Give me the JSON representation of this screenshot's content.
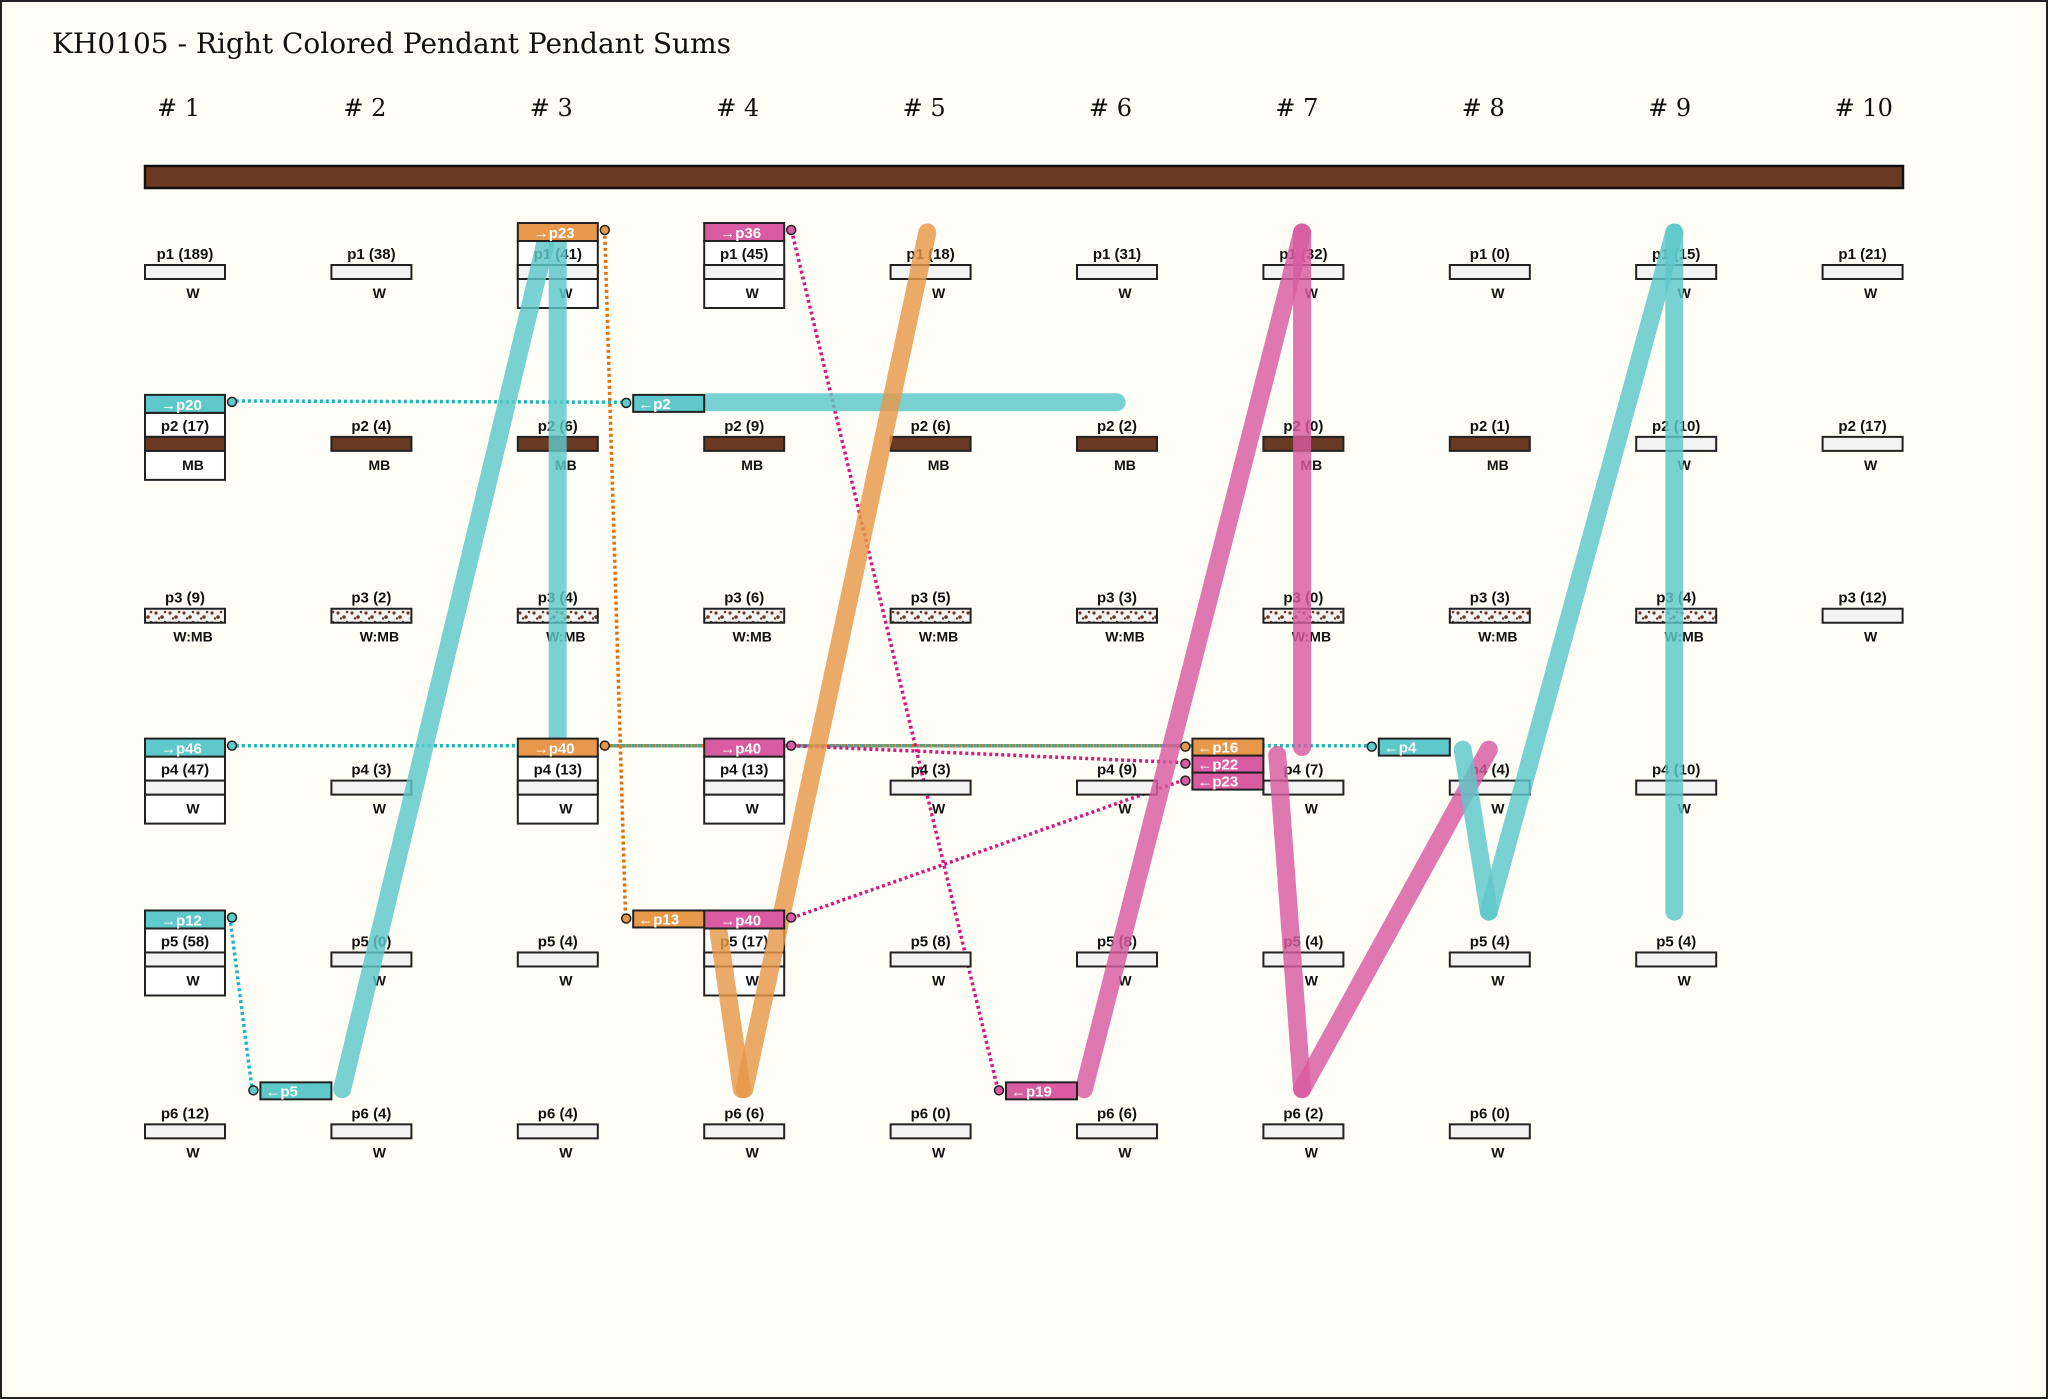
{
  "title": "KH0105 - Right Colored Pendant Pendant Sums",
  "colors": {
    "teal": "#5ec8ca",
    "orange": "#e8984a",
    "pink": "#d95ba1",
    "cord_brown": "#6a3923",
    "box_fill": "#f3f3f3",
    "background": "#fffef6"
  },
  "columns": [
    {
      "label": "# 1",
      "pendants": [
        {
          "label": "p1 (189)",
          "color": "W"
        },
        {
          "label": "p2 (17)",
          "color": "MB"
        },
        {
          "label": "p3 (9)",
          "color": "W:MB"
        },
        {
          "label": "p4 (47)",
          "color": "W"
        },
        {
          "label": "p5 (58)",
          "color": "W"
        },
        {
          "label": "p6 (12)",
          "color": "W"
        }
      ]
    },
    {
      "label": "# 2",
      "pendants": [
        {
          "label": "p1 (38)",
          "color": "W"
        },
        {
          "label": "p2 (4)",
          "color": "MB"
        },
        {
          "label": "p3 (2)",
          "color": "W:MB"
        },
        {
          "label": "p4 (3)",
          "color": "W"
        },
        {
          "label": "p5 (0)",
          "color": "W"
        },
        {
          "label": "p6 (4)",
          "color": "W"
        }
      ]
    },
    {
      "label": "# 3",
      "pendants": [
        {
          "label": "p1 (41)",
          "color": "W"
        },
        {
          "label": "p2 (6)",
          "color": "MB"
        },
        {
          "label": "p3 (4)",
          "color": "W:MB"
        },
        {
          "label": "p4 (13)",
          "color": "W"
        },
        {
          "label": "p5 (4)",
          "color": "W"
        },
        {
          "label": "p6 (4)",
          "color": "W"
        }
      ]
    },
    {
      "label": "# 4",
      "pendants": [
        {
          "label": "p1 (45)",
          "color": "W"
        },
        {
          "label": "p2 (9)",
          "color": "MB"
        },
        {
          "label": "p3 (6)",
          "color": "W:MB"
        },
        {
          "label": "p4 (13)",
          "color": "W"
        },
        {
          "label": "p5 (17)",
          "color": "W"
        },
        {
          "label": "p6 (6)",
          "color": "W"
        }
      ]
    },
    {
      "label": "# 5",
      "pendants": [
        {
          "label": "p1 (18)",
          "color": "W"
        },
        {
          "label": "p2 (6)",
          "color": "MB"
        },
        {
          "label": "p3 (5)",
          "color": "W:MB"
        },
        {
          "label": "p4 (3)",
          "color": "W"
        },
        {
          "label": "p5 (8)",
          "color": "W"
        },
        {
          "label": "p6 (0)",
          "color": "W"
        }
      ]
    },
    {
      "label": "# 6",
      "pendants": [
        {
          "label": "p1 (31)",
          "color": "W"
        },
        {
          "label": "p2 (2)",
          "color": "MB"
        },
        {
          "label": "p3 (3)",
          "color": "W:MB"
        },
        {
          "label": "p4 (9)",
          "color": "W"
        },
        {
          "label": "p5 (8)",
          "color": "W"
        },
        {
          "label": "p6 (6)",
          "color": "W"
        }
      ]
    },
    {
      "label": "# 7",
      "pendants": [
        {
          "label": "p1 (32)",
          "color": "W"
        },
        {
          "label": "p2 (0)",
          "color": "MB"
        },
        {
          "label": "p3 (0)",
          "color": "W:MB"
        },
        {
          "label": "p4 (7)",
          "color": "W"
        },
        {
          "label": "p5 (4)",
          "color": "W"
        },
        {
          "label": "p6 (2)",
          "color": "W"
        }
      ]
    },
    {
      "label": "# 8",
      "pendants": [
        {
          "label": "p1 (0)",
          "color": "W"
        },
        {
          "label": "p2 (1)",
          "color": "MB"
        },
        {
          "label": "p3 (3)",
          "color": "W:MB"
        },
        {
          "label": "p4 (4)",
          "color": "W"
        },
        {
          "label": "p5 (4)",
          "color": "W"
        },
        {
          "label": "p6 (0)",
          "color": "W"
        }
      ]
    },
    {
      "label": "# 9",
      "pendants": [
        {
          "label": "p1 (15)",
          "color": "W"
        },
        {
          "label": "p2 (10)",
          "color": "W"
        },
        {
          "label": "p3 (4)",
          "color": "W:MB"
        },
        {
          "label": "p4 (10)",
          "color": "W"
        },
        {
          "label": "p5 (4)",
          "color": "W"
        }
      ]
    },
    {
      "label": "# 10",
      "pendants": [
        {
          "label": "p1 (21)",
          "color": "W"
        },
        {
          "label": "p2 (17)",
          "color": "W"
        },
        {
          "label": "p3 (12)",
          "color": "W"
        }
      ]
    }
  ],
  "sum_tags": [
    {
      "text": "→p20",
      "color": "teal",
      "column": 1,
      "pendant": 2
    },
    {
      "text": "→p46",
      "color": "teal",
      "column": 1,
      "pendant": 4
    },
    {
      "text": "→p12",
      "color": "teal",
      "column": 1,
      "pendant": 5
    },
    {
      "text": "→p23",
      "color": "orange",
      "column": 3,
      "pendant": 1
    },
    {
      "text": "→p40",
      "color": "orange",
      "column": 3,
      "pendant": 4
    },
    {
      "text": "→p36",
      "color": "pink",
      "column": 4,
      "pendant": 1
    },
    {
      "text": "→p40",
      "color": "pink",
      "column": 4,
      "pendant": 4
    },
    {
      "text": "→p40",
      "color": "pink",
      "column": 4,
      "pendant": 5
    }
  ],
  "source_tags": [
    {
      "text": "←p2",
      "color": "teal",
      "column": 4,
      "pendant": 2
    },
    {
      "text": "←p13",
      "color": "orange",
      "column": 4,
      "pendant": 5
    },
    {
      "text": "←p5",
      "color": "teal",
      "column": 2,
      "pendant": 6
    },
    {
      "text": "←p19",
      "color": "pink",
      "column": 6,
      "pendant": 6
    },
    {
      "text": "←p16",
      "color": "orange",
      "column": 7,
      "pendant": 4
    },
    {
      "text": "←p22",
      "color": "pink",
      "column": 7,
      "pendant": 4
    },
    {
      "text": "←p23",
      "color": "pink",
      "column": 7,
      "pendant": 4
    },
    {
      "text": "←p4",
      "color": "teal",
      "column": 8,
      "pendant": 4
    }
  ]
}
